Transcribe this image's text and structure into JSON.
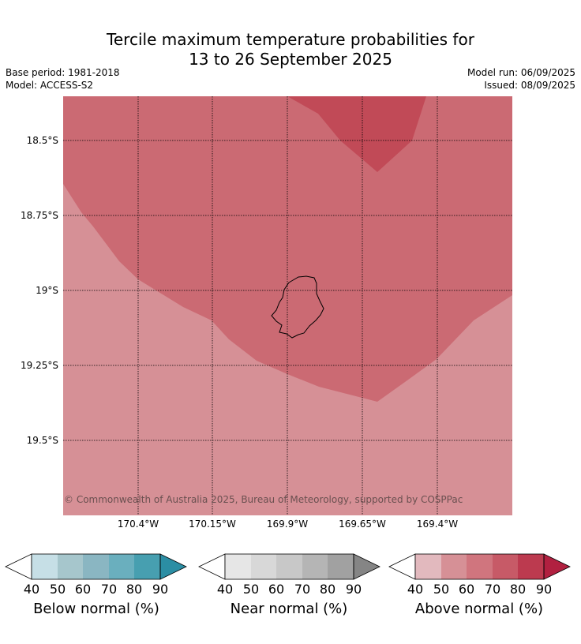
{
  "title_line1": "Tercile maximum temperature probabilities for",
  "title_line2": "13 to 26 September 2025",
  "meta_left": {
    "base_period": "Base period: 1981-2018",
    "model": "Model: ACCESS-S2"
  },
  "meta_right": {
    "model_run": "Model run: 06/09/2025",
    "issued": "Issued: 08/09/2025"
  },
  "map": {
    "lat_labels": [
      "18.5°S",
      "18.75°S",
      "19°S",
      "19.25°S",
      "19.5°S"
    ],
    "lon_labels": [
      "170.4°W",
      "170.15°W",
      "169.9°W",
      "169.65°W",
      "169.4°W"
    ],
    "copyright": "© Commonwealth of Australia 2025, Bureau of Meteorology, supported by COSPPac",
    "zones": [
      {
        "category": "Above normal",
        "range": "50-60",
        "color": "#d69096"
      },
      {
        "category": "Above normal",
        "range": "60-70",
        "color": "#cb6a73"
      },
      {
        "category": "Above normal",
        "range": "70-80",
        "color": "#c14a57"
      }
    ],
    "island_outline_color": "#000000"
  },
  "colorbars": [
    {
      "title": "Below normal (%)",
      "ticks": [
        "40",
        "50",
        "60",
        "70",
        "80",
        "90"
      ],
      "colors": [
        "#c6dfe6",
        "#a6c6cc",
        "#8ab6c2",
        "#6aafbe",
        "#479fb0"
      ],
      "over_color": "#2b8ea4"
    },
    {
      "title": "Near normal (%)",
      "ticks": [
        "40",
        "50",
        "60",
        "70",
        "80",
        "90"
      ],
      "colors": [
        "#e6e6e6",
        "#d8d8d8",
        "#c8c8c8",
        "#b5b5b5",
        "#a1a1a1"
      ],
      "over_color": "#858585"
    },
    {
      "title": "Above normal (%)",
      "ticks": [
        "40",
        "50",
        "60",
        "70",
        "80",
        "90"
      ],
      "colors": [
        "#e2b9be",
        "#d69096",
        "#d0757e",
        "#c75a67",
        "#bc3a4f"
      ],
      "over_color": "#b12040"
    }
  ]
}
